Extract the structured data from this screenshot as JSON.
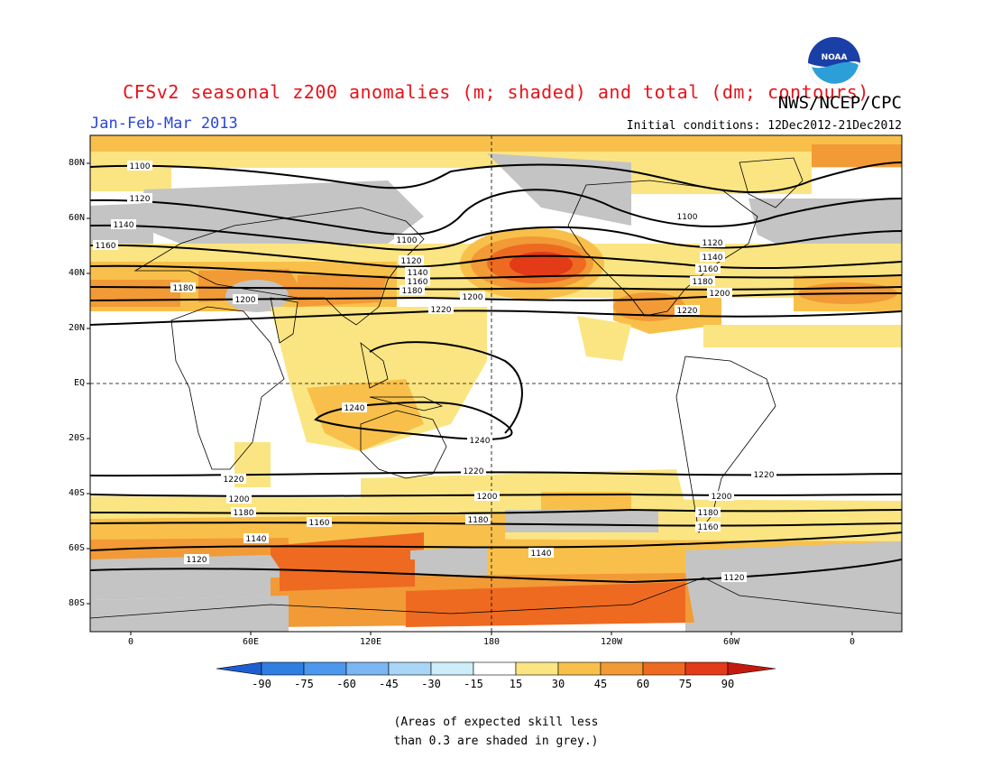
{
  "title": "CFSv2 seasonal z200 anomalies (m; shaded) and total (dm; contours)",
  "agency": "NWS/NCEP/CPC",
  "season": "Jan-Feb-Mar 2013",
  "initial_conditions": "Initial conditions: 12Dec2012-21Dec2012",
  "logo_text": "NOAA",
  "lat_labels": [
    "80N",
    "60N",
    "40N",
    "20N",
    "EQ",
    "20S",
    "40S",
    "60S",
    "80S"
  ],
  "lon_labels": [
    "0",
    "60E",
    "120E",
    "180",
    "120W",
    "60W",
    "0"
  ],
  "colorbar": {
    "ticks": [
      "-90",
      "-75",
      "-60",
      "-45",
      "-30",
      "-15",
      "15",
      "30",
      "45",
      "60",
      "75",
      "90"
    ],
    "colors": [
      "#1d5fd1",
      "#2f7fe3",
      "#4c98ee",
      "#7bb6f3",
      "#a9d6f6",
      "#cdeef8",
      "#ffffff",
      "#fbe582",
      "#f8c04a",
      "#f29a36",
      "#ee6a20",
      "#e33a17",
      "#c41a0e"
    ]
  },
  "contour_labels": [
    "1100",
    "1120",
    "1140",
    "1160",
    "1180",
    "1200",
    "1220",
    "1240"
  ],
  "note": [
    "(Areas of expected skill less",
    "than 0.3 are shaded in grey.)"
  ],
  "colors": {
    "title": "#e8121a",
    "season": "#2a46d9",
    "skill_grey": "#c4c4c4"
  }
}
